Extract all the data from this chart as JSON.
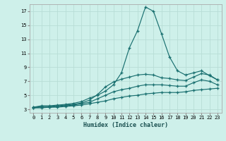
{
  "xlabel": "Humidex (Indice chaleur)",
  "background_color": "#cef0ea",
  "grid_color": "#b8ddd6",
  "line_color": "#1a7070",
  "xlim": [
    -0.5,
    23.5
  ],
  "ylim": [
    2.5,
    18.0
  ],
  "xticks": [
    0,
    1,
    2,
    3,
    4,
    5,
    6,
    7,
    8,
    9,
    10,
    11,
    12,
    13,
    14,
    15,
    16,
    17,
    18,
    19,
    20,
    21,
    22,
    23
  ],
  "yticks": [
    3,
    5,
    7,
    9,
    11,
    13,
    15,
    17
  ],
  "series": [
    {
      "x": [
        0,
        1,
        2,
        3,
        4,
        5,
        6,
        7,
        8,
        9,
        10,
        11,
        12,
        13,
        14,
        15,
        16,
        17,
        18,
        19,
        20,
        21,
        22,
        23
      ],
      "y": [
        3.3,
        3.5,
        3.5,
        3.6,
        3.7,
        3.85,
        4.1,
        4.6,
        5.0,
        5.6,
        6.5,
        8.2,
        11.8,
        14.2,
        17.6,
        17.0,
        13.8,
        10.5,
        8.5,
        7.9,
        8.2,
        8.5,
        7.8,
        7.2
      ]
    },
    {
      "x": [
        0,
        1,
        2,
        3,
        4,
        5,
        6,
        7,
        8,
        9,
        10,
        11,
        12,
        13,
        14,
        15,
        16,
        17,
        18,
        19,
        20,
        21,
        22,
        23
      ],
      "y": [
        3.3,
        3.4,
        3.4,
        3.5,
        3.6,
        3.7,
        3.9,
        4.3,
        5.1,
        6.2,
        6.9,
        7.3,
        7.6,
        7.9,
        8.0,
        7.9,
        7.5,
        7.4,
        7.2,
        7.1,
        7.6,
        8.1,
        7.9,
        7.2
      ]
    },
    {
      "x": [
        0,
        1,
        2,
        3,
        4,
        5,
        6,
        7,
        8,
        9,
        10,
        11,
        12,
        13,
        14,
        15,
        16,
        17,
        18,
        19,
        20,
        21,
        22,
        23
      ],
      "y": [
        3.2,
        3.3,
        3.3,
        3.4,
        3.5,
        3.6,
        3.8,
        4.0,
        4.5,
        5.0,
        5.5,
        5.8,
        6.0,
        6.3,
        6.5,
        6.5,
        6.5,
        6.4,
        6.3,
        6.3,
        6.8,
        7.2,
        7.0,
        6.5
      ]
    },
    {
      "x": [
        0,
        1,
        2,
        3,
        4,
        5,
        6,
        7,
        8,
        9,
        10,
        11,
        12,
        13,
        14,
        15,
        16,
        17,
        18,
        19,
        20,
        21,
        22,
        23
      ],
      "y": [
        3.2,
        3.2,
        3.3,
        3.3,
        3.4,
        3.5,
        3.6,
        3.8,
        4.0,
        4.2,
        4.5,
        4.7,
        4.9,
        5.0,
        5.2,
        5.3,
        5.4,
        5.4,
        5.4,
        5.5,
        5.7,
        5.8,
        5.9,
        6.0
      ]
    }
  ]
}
